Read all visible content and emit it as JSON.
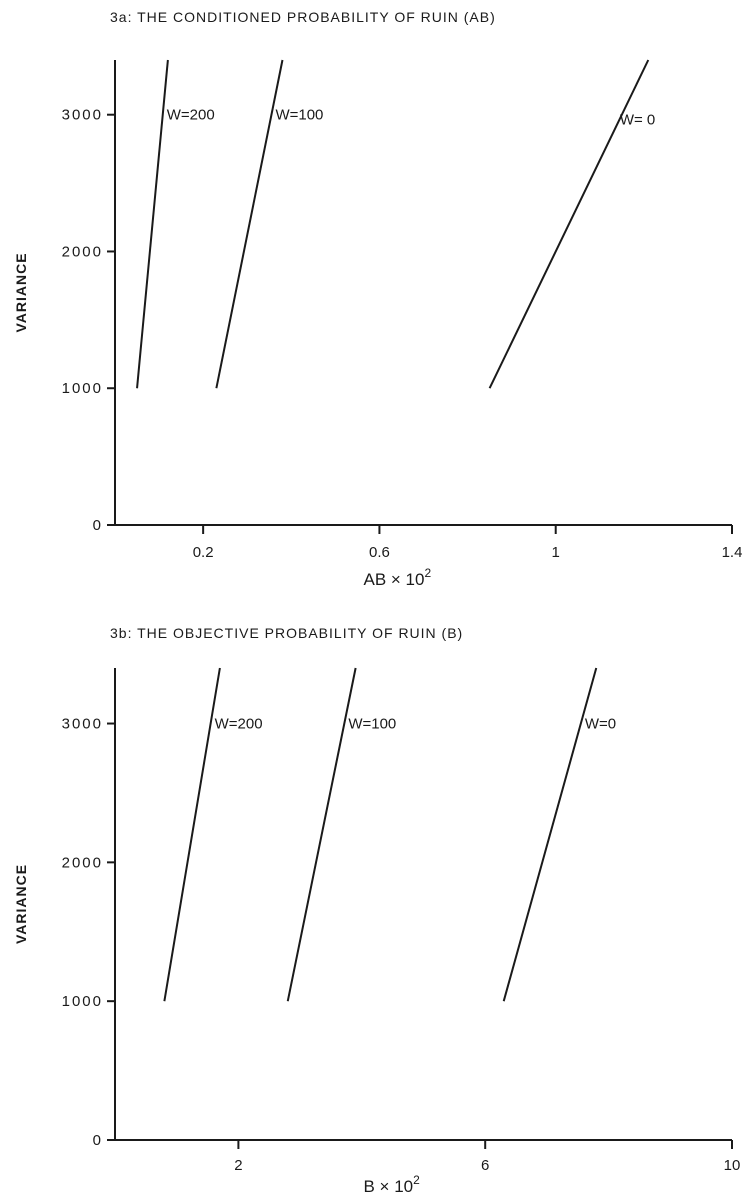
{
  "chart_data": [
    {
      "type": "line",
      "title": "3a: THE CONDITIONED PROBABILITY OF RUIN (AB)",
      "xlabel": "AB × 10",
      "xlabel_sup": "2",
      "ylabel": "VARIANCE",
      "xlim": [
        0,
        1.4
      ],
      "ylim": [
        0,
        3400
      ],
      "xticks": [
        0.2,
        0.6,
        1,
        1.4
      ],
      "xtick_labels": [
        "0.2",
        "0.6",
        "1",
        "1.4"
      ],
      "yticks": [
        0,
        1000,
        2000,
        3000
      ],
      "ytick_labels": [
        "0",
        "1000",
        "2000",
        "3000"
      ],
      "grid": false,
      "series": [
        {
          "name": "W=200",
          "points": [
            [
              0.05,
              1000
            ],
            [
              0.12,
              3400
            ]
          ]
        },
        {
          "name": "W=100",
          "points": [
            [
              0.23,
              1000
            ],
            [
              0.38,
              3400
            ]
          ]
        },
        {
          "name": "W= 0",
          "points": [
            [
              0.85,
              1000
            ],
            [
              1.21,
              3400
            ]
          ]
        }
      ]
    },
    {
      "type": "line",
      "title": "3b: THE OBJECTIVE PROBABILITY OF RUIN (B)",
      "xlabel": "B × 10",
      "xlabel_sup": "2",
      "ylabel": "VARIANCE",
      "xlim": [
        0,
        10
      ],
      "ylim": [
        0,
        3400
      ],
      "xticks": [
        2,
        6,
        10
      ],
      "xtick_labels": [
        "2",
        "6",
        "10"
      ],
      "yticks": [
        0,
        1000,
        2000,
        3000
      ],
      "ytick_labels": [
        "0",
        "1000",
        "2000",
        "3000"
      ],
      "grid": false,
      "series": [
        {
          "name": "W=200",
          "points": [
            [
              0.8,
              1000
            ],
            [
              1.7,
              3400
            ]
          ]
        },
        {
          "name": "W=100",
          "points": [
            [
              2.8,
              1000
            ],
            [
              3.9,
              3400
            ]
          ]
        },
        {
          "name": "W=0",
          "points": [
            [
              6.3,
              1000
            ],
            [
              7.8,
              3400
            ]
          ]
        }
      ]
    }
  ]
}
